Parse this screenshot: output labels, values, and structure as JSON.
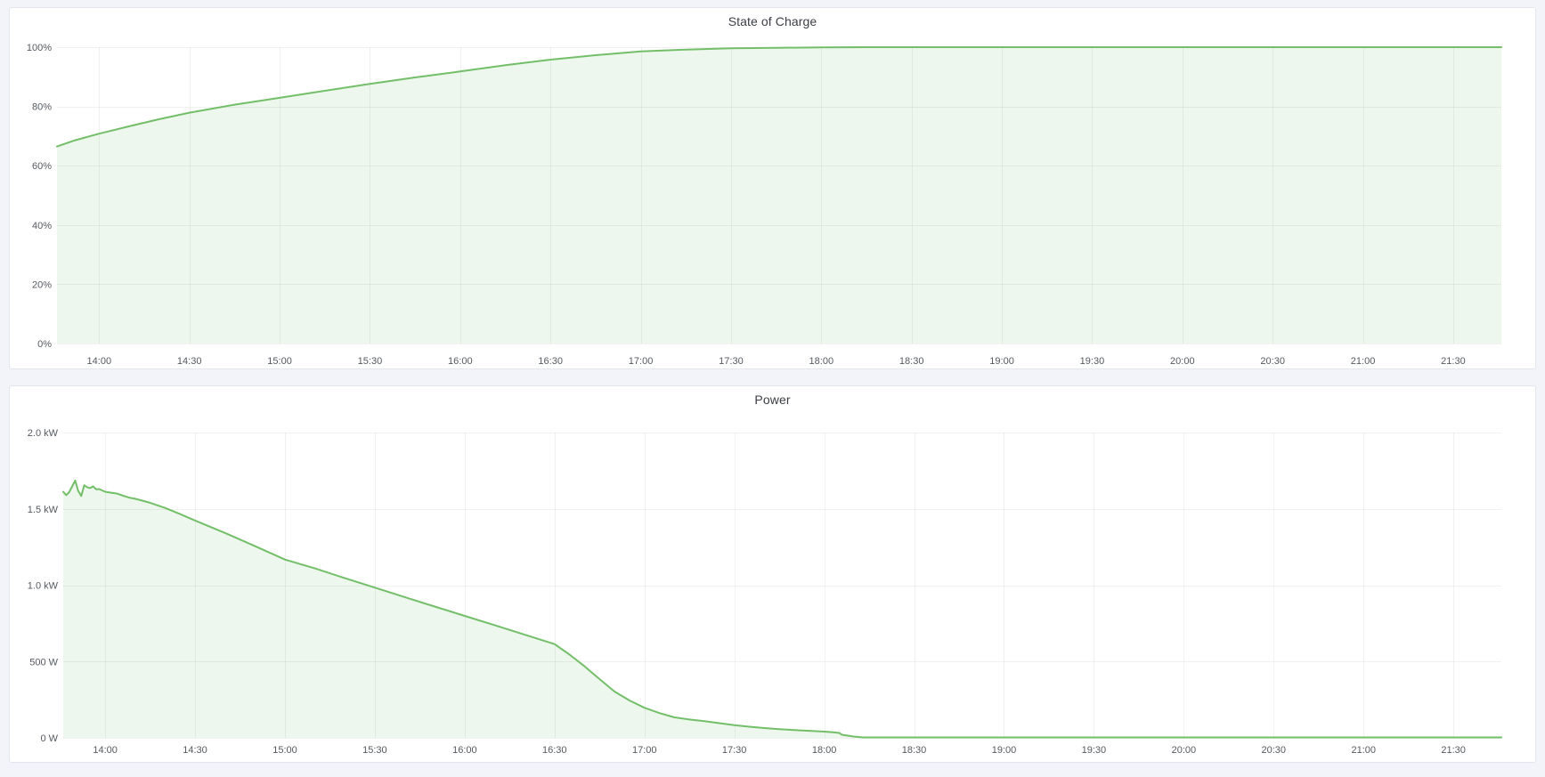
{
  "page": {
    "background_color": "#f2f4f9",
    "panel_background": "#ffffff",
    "accent_green": "#73bf69",
    "text_color": "#3b3e44",
    "tick_color": "#55595f"
  },
  "chart_data": [
    {
      "id": "soc",
      "type": "area",
      "title": "State of Charge",
      "legend": "none",
      "grid": true,
      "line_color": "#73bf69",
      "fill_color": "rgba(115,191,105,0.12)",
      "x_range": [
        "13:46",
        "21:46"
      ],
      "x_ticks": [
        "14:00",
        "14:30",
        "15:00",
        "15:30",
        "16:00",
        "16:30",
        "17:00",
        "17:30",
        "18:00",
        "18:30",
        "19:00",
        "19:30",
        "20:00",
        "20:30",
        "21:00",
        "21:30"
      ],
      "y_range": [
        0,
        100
      ],
      "y_ticks": [
        {
          "label": "0%",
          "value": 0
        },
        {
          "label": "20%",
          "value": 20
        },
        {
          "label": "40%",
          "value": 40
        },
        {
          "label": "60%",
          "value": 60
        },
        {
          "label": "80%",
          "value": 80
        },
        {
          "label": "100%",
          "value": 100
        }
      ],
      "unit": "percent",
      "points": [
        [
          "13:46",
          66.5
        ],
        [
          "13:52",
          68.6
        ],
        [
          "14:00",
          70.8
        ],
        [
          "14:10",
          73.3
        ],
        [
          "14:20",
          75.7
        ],
        [
          "14:30",
          77.9
        ],
        [
          "14:45",
          80.6
        ],
        [
          "15:00",
          82.9
        ],
        [
          "15:15",
          85.3
        ],
        [
          "15:30",
          87.6
        ],
        [
          "15:45",
          89.8
        ],
        [
          "16:00",
          91.8
        ],
        [
          "16:15",
          93.9
        ],
        [
          "16:30",
          95.8
        ],
        [
          "16:45",
          97.3
        ],
        [
          "17:00",
          98.6
        ],
        [
          "17:15",
          99.2
        ],
        [
          "17:30",
          99.6
        ],
        [
          "17:45",
          99.8
        ],
        [
          "18:00",
          99.9
        ],
        [
          "18:15",
          100
        ],
        [
          "18:30",
          100
        ],
        [
          "19:00",
          100
        ],
        [
          "19:30",
          100
        ],
        [
          "20:00",
          100
        ],
        [
          "20:30",
          100
        ],
        [
          "21:00",
          100
        ],
        [
          "21:30",
          100
        ],
        [
          "21:46",
          100
        ]
      ]
    },
    {
      "id": "power",
      "type": "area",
      "title": "Power",
      "legend": "none",
      "grid": true,
      "line_color": "#73bf69",
      "fill_color": "rgba(115,191,105,0.12)",
      "x_range": [
        "13:46",
        "21:46"
      ],
      "x_ticks": [
        "14:00",
        "14:30",
        "15:00",
        "15:30",
        "16:00",
        "16:30",
        "17:00",
        "17:30",
        "18:00",
        "18:30",
        "19:00",
        "19:30",
        "20:00",
        "20:30",
        "21:00",
        "21:30"
      ],
      "y_range": [
        0,
        2000
      ],
      "y_ticks": [
        {
          "label": "0 W",
          "value": 0
        },
        {
          "label": "500 W",
          "value": 500
        },
        {
          "label": "1.0 kW",
          "value": 1000
        },
        {
          "label": "1.5 kW",
          "value": 1500
        },
        {
          "label": "2.0 kW",
          "value": 2000
        }
      ],
      "unit": "watt",
      "points": [
        [
          "13:46",
          1612
        ],
        [
          "13:47",
          1590
        ],
        [
          "13:48",
          1610
        ],
        [
          "13:49",
          1648
        ],
        [
          "13:50",
          1686
        ],
        [
          "13:51",
          1618
        ],
        [
          "13:52",
          1584
        ],
        [
          "13:53",
          1655
        ],
        [
          "13:54",
          1642
        ],
        [
          "13:55",
          1636
        ],
        [
          "13:56",
          1648
        ],
        [
          "13:57",
          1628
        ],
        [
          "13:58",
          1630
        ],
        [
          "14:00",
          1612
        ],
        [
          "14:02",
          1606
        ],
        [
          "14:04",
          1600
        ],
        [
          "14:06",
          1586
        ],
        [
          "14:08",
          1574
        ],
        [
          "14:10",
          1566
        ],
        [
          "14:12",
          1556
        ],
        [
          "14:15",
          1540
        ],
        [
          "14:20",
          1506
        ],
        [
          "14:25",
          1466
        ],
        [
          "14:30",
          1424
        ],
        [
          "14:40",
          1342
        ],
        [
          "14:50",
          1256
        ],
        [
          "15:00",
          1168
        ],
        [
          "15:10",
          1110
        ],
        [
          "15:20",
          1046
        ],
        [
          "15:30",
          984
        ],
        [
          "15:40",
          922
        ],
        [
          "15:50",
          860
        ],
        [
          "16:00",
          799
        ],
        [
          "16:10",
          738
        ],
        [
          "16:20",
          676
        ],
        [
          "16:30",
          614
        ],
        [
          "16:35",
          545
        ],
        [
          "16:40",
          469
        ],
        [
          "16:45",
          385
        ],
        [
          "16:50",
          303
        ],
        [
          "16:55",
          245
        ],
        [
          "17:00",
          197
        ],
        [
          "17:05",
          162
        ],
        [
          "17:10",
          134
        ],
        [
          "17:15",
          120
        ],
        [
          "17:20",
          109
        ],
        [
          "17:25",
          96
        ],
        [
          "17:30",
          83
        ],
        [
          "17:35",
          73
        ],
        [
          "17:40",
          64
        ],
        [
          "17:45",
          57
        ],
        [
          "17:50",
          51
        ],
        [
          "17:55",
          46
        ],
        [
          "18:00",
          41
        ],
        [
          "18:03",
          36
        ],
        [
          "18:05",
          32
        ],
        [
          "18:06",
          20
        ],
        [
          "18:08",
          14
        ],
        [
          "18:10",
          8
        ],
        [
          "18:13",
          3
        ],
        [
          "18:30",
          3
        ],
        [
          "19:00",
          3
        ],
        [
          "19:30",
          3
        ],
        [
          "20:00",
          3
        ],
        [
          "20:30",
          3
        ],
        [
          "21:00",
          3
        ],
        [
          "21:30",
          3
        ],
        [
          "21:46",
          3
        ]
      ]
    }
  ]
}
